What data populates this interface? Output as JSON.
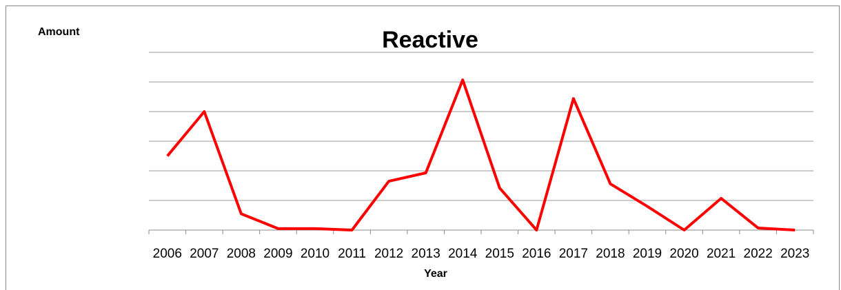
{
  "chart_data": {
    "type": "line",
    "title": "Reactive",
    "y_label": "Amount",
    "x_label": "Year",
    "categories": [
      "2006",
      "2007",
      "2008",
      "2009",
      "2010",
      "2011",
      "2012",
      "2013",
      "2014",
      "2015",
      "2016",
      "2017",
      "2018",
      "2019",
      "2020",
      "2021",
      "2022",
      "2023"
    ],
    "series": [
      {
        "name": "Reactive",
        "color": "#ff0000",
        "values": [
          2.5,
          4.0,
          0.55,
          0.05,
          0.05,
          0,
          1.65,
          1.93,
          5.07,
          1.42,
          0,
          4.44,
          1.56,
          0.8,
          0,
          1.07,
          0.07,
          0
        ]
      }
    ],
    "ylim": [
      0,
      6
    ],
    "yticks": [
      0,
      1,
      2,
      3,
      4,
      5,
      6
    ],
    "grid": true
  }
}
